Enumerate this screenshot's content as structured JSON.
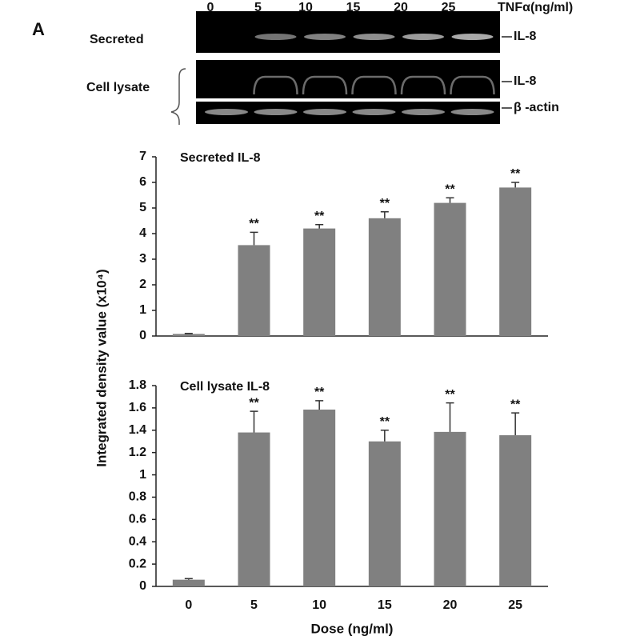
{
  "figure_label": "A",
  "blot": {
    "dose_label": "TNFα(ng/ml)",
    "lanes": [
      "0",
      "5",
      "10",
      "15",
      "20",
      "25"
    ],
    "rows": [
      "Secreted",
      "Cell lysate"
    ],
    "bands": [
      "IL-8",
      "IL-8",
      "β -actin"
    ]
  },
  "y_axis_label": "Integrated density value (x10⁴)",
  "chart_data": [
    {
      "type": "bar",
      "title": "Secreted IL-8",
      "values": [
        0.08,
        3.55,
        4.2,
        4.6,
        5.2,
        5.8
      ],
      "errors": [
        0.02,
        0.5,
        0.15,
        0.25,
        0.2,
        0.2
      ],
      "annotations": [
        null,
        "**",
        "**",
        "**",
        "**",
        "**"
      ],
      "color": "#808080",
      "ylim": [
        0,
        7
      ],
      "yticks": [
        0,
        1,
        2,
        3,
        4,
        5,
        6,
        7
      ]
    },
    {
      "type": "bar",
      "title": "Cell lysate IL-8",
      "categories": [
        "0",
        "5",
        "10",
        "15",
        "20",
        "25"
      ],
      "x_label": "Dose (ng/ml)",
      "values": [
        0.06,
        1.38,
        1.585,
        1.3,
        1.385,
        1.355
      ],
      "errors": [
        0.01,
        0.19,
        0.08,
        0.1,
        0.26,
        0.2
      ],
      "annotations": [
        null,
        "**",
        "**",
        "**",
        "**",
        "**"
      ],
      "color": "#808080",
      "ylim": [
        0,
        1.8
      ],
      "yticks": [
        0,
        0.2,
        0.4,
        0.6,
        0.8,
        1,
        1.2,
        1.4,
        1.6,
        1.8
      ]
    }
  ]
}
